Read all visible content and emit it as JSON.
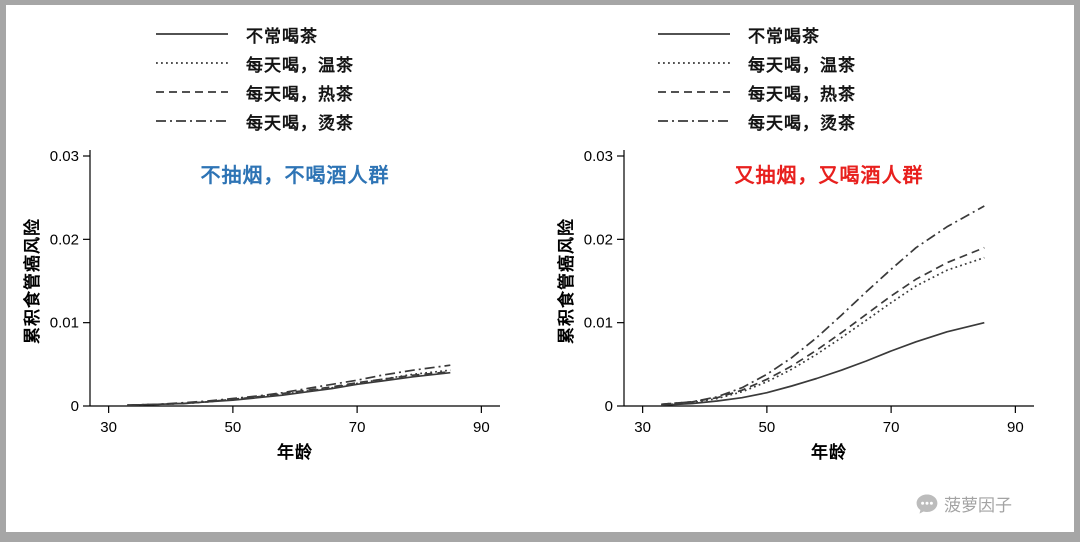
{
  "watermark": {
    "text": "菠萝因子"
  },
  "line_color": "#3a3a3a",
  "chart_data": [
    {
      "type": "line",
      "title": "不抽烟，不喝酒人群",
      "title_color": "#2e74b5",
      "xlabel": "年龄",
      "ylabel": "累积食管癌风险",
      "xlim": [
        27,
        93
      ],
      "ylim": [
        0,
        0.03
      ],
      "xticks": [
        30,
        50,
        70,
        90
      ],
      "yticks": [
        0,
        0.01,
        0.02,
        0.03
      ],
      "ytick_labels": [
        "0",
        "0.01",
        "0.02",
        "0.03"
      ],
      "legend_position": "top-left",
      "grid": false,
      "x": [
        33,
        38,
        42,
        46,
        50,
        54,
        58,
        62,
        66,
        70,
        74,
        79,
        85
      ],
      "series": [
        {
          "name": "不常喝茶",
          "style": "solid",
          "values": [
            0.0001,
            0.0002,
            0.0003,
            0.0005,
            0.0007,
            0.001,
            0.0013,
            0.0017,
            0.0021,
            0.0026,
            0.003,
            0.0035,
            0.004
          ]
        },
        {
          "name": "每天喝，温茶",
          "style": "dotted",
          "values": [
            0.0001,
            0.0002,
            0.0003,
            0.0005,
            0.0008,
            0.0011,
            0.0014,
            0.0018,
            0.0022,
            0.0027,
            0.0032,
            0.0038,
            0.0043
          ]
        },
        {
          "name": "每天喝，热茶",
          "style": "dashed",
          "values": [
            0.0001,
            0.0002,
            0.0003,
            0.0005,
            0.0008,
            0.0011,
            0.0015,
            0.0019,
            0.0023,
            0.0028,
            0.0032,
            0.0037,
            0.0041
          ]
        },
        {
          "name": "每天喝，烫茶",
          "style": "dashdot",
          "values": [
            0.0001,
            0.0002,
            0.0004,
            0.0006,
            0.0009,
            0.0012,
            0.0016,
            0.0021,
            0.0026,
            0.0031,
            0.0037,
            0.0043,
            0.0049
          ]
        }
      ]
    },
    {
      "type": "line",
      "title": "又抽烟，又喝酒人群",
      "title_color": "#e8201e",
      "xlabel": "年龄",
      "ylabel": "累积食管癌风险",
      "xlim": [
        27,
        93
      ],
      "ylim": [
        0,
        0.03
      ],
      "xticks": [
        30,
        50,
        70,
        90
      ],
      "yticks": [
        0,
        0.01,
        0.02,
        0.03
      ],
      "ytick_labels": [
        "0",
        "0.01",
        "0.02",
        "0.03"
      ],
      "legend_position": "top-left",
      "grid": false,
      "x": [
        33,
        38,
        42,
        46,
        50,
        54,
        58,
        62,
        66,
        70,
        74,
        79,
        85
      ],
      "series": [
        {
          "name": "不常喝茶",
          "style": "solid",
          "values": [
            0.0001,
            0.0003,
            0.0006,
            0.001,
            0.0016,
            0.0024,
            0.0033,
            0.0043,
            0.0054,
            0.0066,
            0.0077,
            0.0089,
            0.01
          ]
        },
        {
          "name": "每天喝，温茶",
          "style": "dotted",
          "values": [
            0.0001,
            0.0004,
            0.0009,
            0.0017,
            0.0029,
            0.0044,
            0.0062,
            0.0082,
            0.0103,
            0.0124,
            0.0144,
            0.0163,
            0.0178
          ]
        },
        {
          "name": "每天喝，热茶",
          "style": "dashed",
          "values": [
            0.0002,
            0.0005,
            0.001,
            0.0019,
            0.0032,
            0.0048,
            0.0067,
            0.0088,
            0.011,
            0.0132,
            0.0152,
            0.0172,
            0.019
          ]
        },
        {
          "name": "每天喝，烫茶",
          "style": "dashdot",
          "values": [
            0.0002,
            0.0005,
            0.0011,
            0.0022,
            0.0038,
            0.0058,
            0.0082,
            0.0109,
            0.0137,
            0.0164,
            0.019,
            0.0215,
            0.024
          ]
        }
      ]
    }
  ]
}
